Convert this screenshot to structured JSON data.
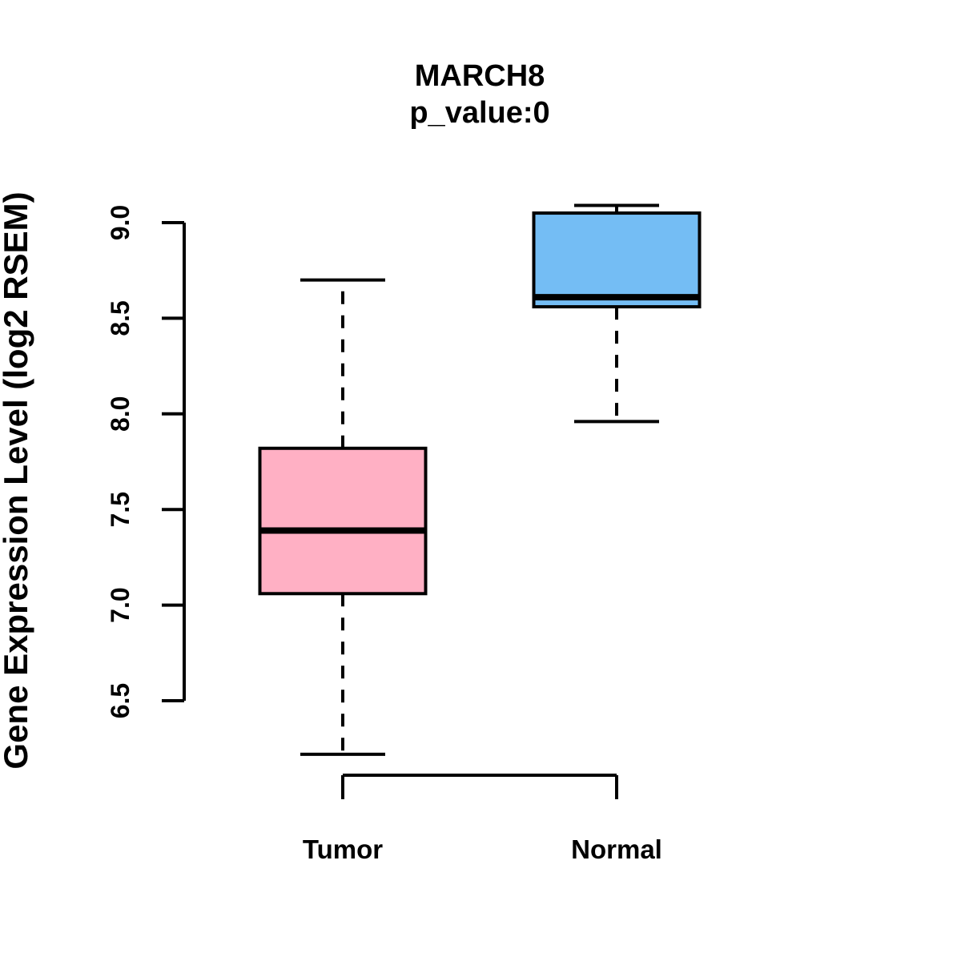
{
  "chart_data": {
    "type": "boxplot",
    "title": "MARCH8",
    "subtitle": "p_value:0",
    "ylabel": "Gene Expression Level (log2 RSEM)",
    "xlabel": "",
    "yticks": [
      6.5,
      7.0,
      7.5,
      8.0,
      8.5,
      9.0
    ],
    "ylim": [
      6.5,
      9.0
    ],
    "grid": false,
    "legend": "none",
    "categories": [
      "Tumor",
      "Normal"
    ],
    "series": [
      {
        "name": "Tumor",
        "color": "#FFB0C4",
        "whisker_low": 6.22,
        "q1": 7.06,
        "median": 7.39,
        "q3": 7.82,
        "whisker_high": 8.7
      },
      {
        "name": "Normal",
        "color": "#74BDF4",
        "whisker_low": 7.96,
        "q1": 8.56,
        "median": 8.61,
        "q3": 9.05,
        "whisker_high": 9.09
      }
    ],
    "colors": {
      "stroke": "#000000",
      "background": "#ffffff"
    }
  }
}
